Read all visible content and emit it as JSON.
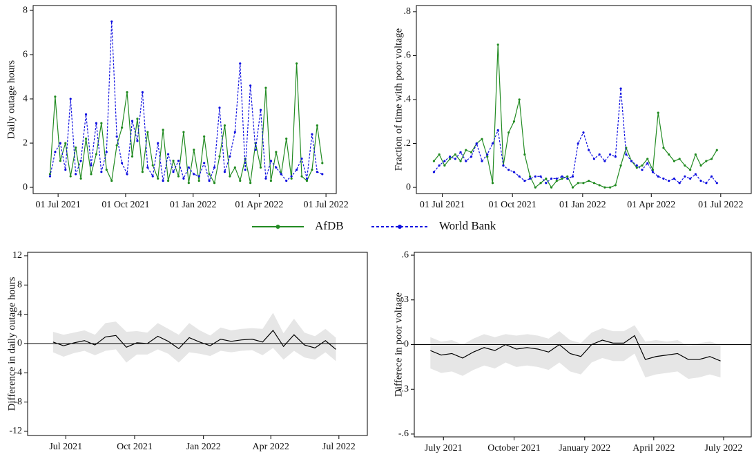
{
  "chart_data": [
    {
      "type": "line",
      "ylabel": "Daily outage hours",
      "x": [
        "2021-06-20",
        "2021-06-27",
        "2021-07-04",
        "2021-07-11",
        "2021-07-18",
        "2021-07-25",
        "2021-08-01",
        "2021-08-08",
        "2021-08-15",
        "2021-08-22",
        "2021-08-29",
        "2021-09-05",
        "2021-09-12",
        "2021-09-19",
        "2021-09-26",
        "2021-10-03",
        "2021-10-10",
        "2021-10-17",
        "2021-10-24",
        "2021-10-31",
        "2021-11-07",
        "2021-11-14",
        "2021-11-21",
        "2021-11-28",
        "2021-12-05",
        "2021-12-12",
        "2021-12-19",
        "2021-12-26",
        "2022-01-02",
        "2022-01-09",
        "2022-01-16",
        "2022-01-23",
        "2022-01-30",
        "2022-02-06",
        "2022-02-13",
        "2022-02-20",
        "2022-02-27",
        "2022-03-06",
        "2022-03-13",
        "2022-03-20",
        "2022-03-27",
        "2022-04-03",
        "2022-04-10",
        "2022-04-17",
        "2022-04-24",
        "2022-05-01",
        "2022-05-08",
        "2022-05-15",
        "2022-05-22",
        "2022-05-29",
        "2022-06-05",
        "2022-06-12",
        "2022-06-19",
        "2022-06-26"
      ],
      "series": [
        {
          "name": "AfDB",
          "color": "#228b22",
          "dash": false,
          "values": [
            0.6,
            4.1,
            1.2,
            2.0,
            0.5,
            1.8,
            0.4,
            2.2,
            0.6,
            1.5,
            2.9,
            0.8,
            0.3,
            1.9,
            2.7,
            4.3,
            1.4,
            3.1,
            0.7,
            2.5,
            1.0,
            0.4,
            2.6,
            0.3,
            1.2,
            0.5,
            2.5,
            0.2,
            1.7,
            0.3,
            2.3,
            0.6,
            0.2,
            1.4,
            2.8,
            0.5,
            0.9,
            0.3,
            1.3,
            0.2,
            2.0,
            0.9,
            4.5,
            0.3,
            1.6,
            0.6,
            2.2,
            0.4,
            5.6,
            0.5,
            0.3,
            0.8,
            2.8,
            1.1
          ]
        },
        {
          "name": "World Bank",
          "color": "#1010e0",
          "dash": true,
          "values": [
            0.5,
            1.6,
            2.0,
            0.8,
            4.0,
            0.6,
            1.2,
            3.3,
            1.0,
            2.9,
            0.7,
            1.6,
            7.5,
            2.3,
            1.1,
            0.6,
            3.0,
            2.1,
            4.3,
            0.9,
            0.5,
            2.0,
            0.3,
            1.5,
            0.7,
            1.2,
            0.4,
            0.9,
            0.6,
            0.5,
            1.1,
            0.3,
            0.9,
            3.6,
            0.7,
            1.4,
            2.5,
            5.6,
            0.8,
            4.6,
            1.7,
            3.5,
            0.4,
            1.2,
            0.9,
            0.6,
            0.3,
            0.5,
            0.8,
            1.3,
            0.4,
            2.4,
            0.7,
            0.6
          ]
        }
      ],
      "xlim": [
        "2021-05-28",
        "2022-07-15"
      ],
      "xticks": [
        {
          "value": "2021-07-01",
          "label": "01 Jul 2021"
        },
        {
          "value": "2021-10-01",
          "label": "01 Oct 2021"
        },
        {
          "value": "2022-01-01",
          "label": "01 Jan 2022"
        },
        {
          "value": "2022-04-01",
          "label": "01 Apr 2022"
        },
        {
          "value": "2022-07-01",
          "label": "01 Jul 2022"
        }
      ],
      "ylim": [
        -0.28,
        8.22
      ],
      "yticks": [
        0,
        2,
        4,
        6,
        8
      ]
    },
    {
      "type": "line",
      "ylabel": "Fraction of time with poor voltage",
      "x": [
        "2021-06-20",
        "2021-06-27",
        "2021-07-04",
        "2021-07-11",
        "2021-07-18",
        "2021-07-25",
        "2021-08-01",
        "2021-08-08",
        "2021-08-15",
        "2021-08-22",
        "2021-08-29",
        "2021-09-05",
        "2021-09-12",
        "2021-09-19",
        "2021-09-26",
        "2021-10-03",
        "2021-10-10",
        "2021-10-17",
        "2021-10-24",
        "2021-10-31",
        "2021-11-07",
        "2021-11-14",
        "2021-11-21",
        "2021-11-28",
        "2021-12-05",
        "2021-12-12",
        "2021-12-19",
        "2021-12-26",
        "2022-01-02",
        "2022-01-09",
        "2022-01-16",
        "2022-01-23",
        "2022-01-30",
        "2022-02-06",
        "2022-02-13",
        "2022-02-20",
        "2022-02-27",
        "2022-03-06",
        "2022-03-13",
        "2022-03-20",
        "2022-03-27",
        "2022-04-03",
        "2022-04-10",
        "2022-04-17",
        "2022-04-24",
        "2022-05-01",
        "2022-05-08",
        "2022-05-15",
        "2022-05-22",
        "2022-05-29",
        "2022-06-05",
        "2022-06-12",
        "2022-06-19",
        "2022-06-26"
      ],
      "series": [
        {
          "color": "#228b22",
          "dash": false,
          "values": [
            0.12,
            0.15,
            0.1,
            0.13,
            0.15,
            0.12,
            0.17,
            0.16,
            0.2,
            0.22,
            0.14,
            0.02,
            0.65,
            0.1,
            0.25,
            0.3,
            0.4,
            0.15,
            0.05,
            0.0,
            0.02,
            0.04,
            0.0,
            0.03,
            0.04,
            0.05,
            0.0,
            0.02,
            0.02,
            0.03,
            0.02,
            0.01,
            0.0,
            0.0,
            0.01,
            0.1,
            0.18,
            0.12,
            0.09,
            0.1,
            0.13,
            0.08,
            0.34,
            0.18,
            0.15,
            0.12,
            0.13,
            0.1,
            0.08,
            0.15,
            0.1,
            0.12,
            0.13,
            0.17
          ]
        },
        {
          "color": "#1010e0",
          "dash": true,
          "values": [
            0.07,
            0.1,
            0.12,
            0.14,
            0.13,
            0.16,
            0.12,
            0.14,
            0.2,
            0.12,
            0.15,
            0.2,
            0.26,
            0.1,
            0.08,
            0.07,
            0.05,
            0.03,
            0.04,
            0.05,
            0.05,
            0.02,
            0.04,
            0.04,
            0.05,
            0.04,
            0.05,
            0.2,
            0.25,
            0.17,
            0.13,
            0.15,
            0.12,
            0.15,
            0.14,
            0.45,
            0.15,
            0.12,
            0.1,
            0.08,
            0.11,
            0.07,
            0.05,
            0.04,
            0.03,
            0.04,
            0.02,
            0.05,
            0.04,
            0.06,
            0.03,
            0.02,
            0.05,
            0.02
          ]
        }
      ],
      "xlim": [
        "2021-05-28",
        "2022-08-10"
      ],
      "xticks": [
        {
          "value": "2021-07-01",
          "label": "01 Jul 2021"
        },
        {
          "value": "2021-10-01",
          "label": "01 Oct 2021"
        },
        {
          "value": "2022-01-01",
          "label": "01 Jan 2022"
        },
        {
          "value": "2022-04-01",
          "label": "01 Apr 2022"
        },
        {
          "value": "2022-07-01",
          "label": "01 Jul 2022"
        }
      ],
      "ylim": [
        -0.028,
        0.828
      ],
      "yticks": [
        0,
        {
          "value": 0.2,
          "label": ".2"
        },
        {
          "value": 0.4,
          "label": ".4"
        },
        {
          "value": 0.6,
          "label": ".6"
        },
        {
          "value": 0.8,
          "label": ".8"
        }
      ]
    },
    {
      "type": "line",
      "ylabel": "Difference in daily outage hours",
      "x": [
        "2021-06-14",
        "2021-06-28",
        "2021-07-12",
        "2021-07-26",
        "2021-08-09",
        "2021-08-23",
        "2021-09-06",
        "2021-09-20",
        "2021-10-04",
        "2021-10-18",
        "2021-11-01",
        "2021-11-15",
        "2021-11-29",
        "2021-12-13",
        "2021-12-27",
        "2022-01-10",
        "2022-01-24",
        "2022-02-07",
        "2022-02-21",
        "2022-03-07",
        "2022-03-21",
        "2022-04-04",
        "2022-04-18",
        "2022-05-02",
        "2022-05-16",
        "2022-05-30",
        "2022-06-13",
        "2022-06-27"
      ],
      "series": [
        {
          "color": "#000000",
          "band_color": "#e6e6e6",
          "values": [
            0.2,
            -0.3,
            0.1,
            0.4,
            -0.2,
            0.9,
            1.1,
            -0.5,
            0.1,
            0.0,
            1.0,
            0.3,
            -0.7,
            0.8,
            0.2,
            -0.3,
            0.6,
            0.3,
            0.5,
            0.6,
            0.2,
            1.8,
            -0.4,
            1.2,
            -0.2,
            -0.6,
            0.4,
            -0.8
          ],
          "lower": [
            -1.2,
            -1.8,
            -1.3,
            -1.0,
            -1.6,
            -1.0,
            -0.8,
            -2.6,
            -1.5,
            -1.5,
            -0.8,
            -1.4,
            -2.6,
            -1.2,
            -1.4,
            -1.7,
            -1.0,
            -1.2,
            -1.0,
            -0.9,
            -1.6,
            -0.6,
            -2.2,
            -1.0,
            -1.9,
            -2.2,
            -1.2,
            -2.4
          ],
          "upper": [
            1.6,
            1.2,
            1.5,
            1.8,
            1.2,
            2.8,
            3.0,
            1.6,
            1.7,
            1.5,
            2.8,
            2.0,
            1.2,
            2.8,
            1.8,
            1.1,
            2.2,
            1.8,
            2.0,
            2.1,
            2.0,
            4.2,
            1.4,
            3.4,
            1.5,
            1.0,
            2.0,
            0.8
          ]
        }
      ],
      "hline": 0,
      "xlim": [
        "2021-05-11",
        "2022-08-08"
      ],
      "xticks": [
        {
          "value": "2021-07-01",
          "label": "Jul 2021"
        },
        {
          "value": "2021-10-01",
          "label": "Oct 2021"
        },
        {
          "value": "2022-01-01",
          "label": "Jan 2022"
        },
        {
          "value": "2022-04-01",
          "label": "Apr 2022"
        },
        {
          "value": "2022-07-01",
          "label": "Jul 2022"
        }
      ],
      "ylim": [
        -12.57,
        12.47
      ],
      "yticks": [
        -12,
        -8,
        -4,
        0,
        4,
        8,
        12
      ]
    },
    {
      "type": "line",
      "ylabel": "Differece in poor voltage",
      "x": [
        "2021-06-14",
        "2021-06-28",
        "2021-07-12",
        "2021-07-26",
        "2021-08-09",
        "2021-08-23",
        "2021-09-06",
        "2021-09-20",
        "2021-10-04",
        "2021-10-18",
        "2021-11-01",
        "2021-11-15",
        "2021-11-29",
        "2021-12-13",
        "2021-12-27",
        "2022-01-10",
        "2022-01-24",
        "2022-02-07",
        "2022-02-21",
        "2022-03-07",
        "2022-03-21",
        "2022-04-04",
        "2022-04-18",
        "2022-05-02",
        "2022-05-16",
        "2022-05-30",
        "2022-06-13",
        "2022-06-27"
      ],
      "series": [
        {
          "color": "#000000",
          "band_color": "#e6e6e6",
          "values": [
            -0.04,
            -0.07,
            -0.06,
            -0.09,
            -0.05,
            -0.02,
            -0.04,
            0.0,
            -0.03,
            -0.02,
            -0.03,
            -0.05,
            0.0,
            -0.06,
            -0.08,
            0.0,
            0.03,
            0.01,
            0.01,
            0.06,
            -0.1,
            -0.08,
            -0.07,
            -0.06,
            -0.1,
            -0.1,
            -0.08,
            -0.11
          ],
          "lower": [
            -0.16,
            -0.19,
            -0.18,
            -0.21,
            -0.17,
            -0.14,
            -0.16,
            -0.12,
            -0.15,
            -0.14,
            -0.15,
            -0.17,
            -0.12,
            -0.18,
            -0.2,
            -0.12,
            -0.09,
            -0.11,
            -0.11,
            -0.06,
            -0.22,
            -0.2,
            -0.19,
            -0.18,
            -0.23,
            -0.22,
            -0.2,
            -0.22
          ],
          "upper": [
            0.05,
            0.02,
            0.03,
            0.0,
            0.04,
            0.07,
            0.05,
            0.07,
            0.06,
            0.07,
            0.06,
            0.04,
            0.09,
            0.03,
            0.01,
            0.08,
            0.11,
            0.09,
            0.09,
            0.13,
            0.02,
            0.03,
            0.02,
            0.03,
            -0.01,
            0.01,
            0.02,
            0.0
          ]
        }
      ],
      "hline": 0,
      "xlim": [
        "2021-05-24",
        "2022-08-06"
      ],
      "xticks": [
        {
          "value": "2021-07-01",
          "label": "July 2021"
        },
        {
          "value": "2021-10-01",
          "label": "October 2021"
        },
        {
          "value": "2022-01-01",
          "label": "January 2022"
        },
        {
          "value": "2022-04-01",
          "label": "April 2022"
        },
        {
          "value": "2022-07-01",
          "label": "July 2022"
        }
      ],
      "ylim": [
        -0.619,
        0.619
      ],
      "yticks": [
        {
          "value": -0.6,
          "label": "-.6"
        },
        {
          "value": -0.3,
          "label": "-.3"
        },
        0,
        {
          "value": 0.3,
          "label": ".3"
        },
        {
          "value": 0.6,
          "label": ".6"
        }
      ]
    }
  ]
}
